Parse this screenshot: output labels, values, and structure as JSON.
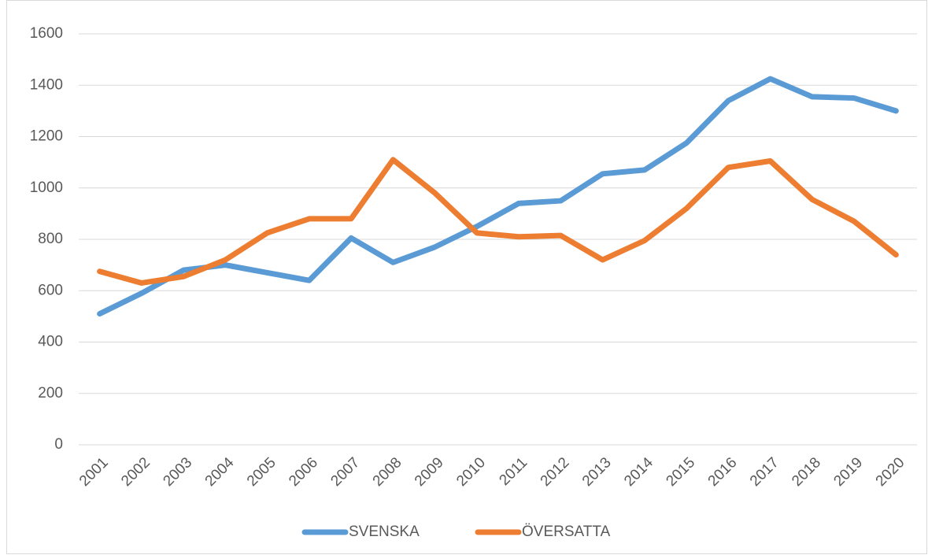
{
  "chart_data": {
    "type": "line",
    "categories": [
      "2001",
      "2002",
      "2003",
      "2004",
      "2005",
      "2006",
      "2007",
      "2008",
      "2009",
      "2010",
      "2011",
      "2012",
      "2013",
      "2014",
      "2015",
      "2016",
      "2017",
      "2018",
      "2019",
      "2020"
    ],
    "series": [
      {
        "name": "SVENSKA",
        "color": "#5b9bd5",
        "values": [
          510,
          590,
          680,
          700,
          670,
          640,
          805,
          710,
          770,
          850,
          940,
          950,
          1055,
          1070,
          1175,
          1340,
          1425,
          1355,
          1350,
          1300
        ]
      },
      {
        "name": "ÖVERSATTA",
        "color": "#ed7d31",
        "values": [
          675,
          630,
          655,
          720,
          825,
          880,
          880,
          1110,
          980,
          825,
          810,
          815,
          720,
          795,
          920,
          1080,
          1105,
          955,
          870,
          740
        ]
      }
    ],
    "ylim": [
      0,
      1600
    ],
    "yticks": [
      0,
      200,
      400,
      600,
      800,
      1000,
      1200,
      1400,
      1600
    ],
    "grid": true,
    "legend": "bottom"
  }
}
